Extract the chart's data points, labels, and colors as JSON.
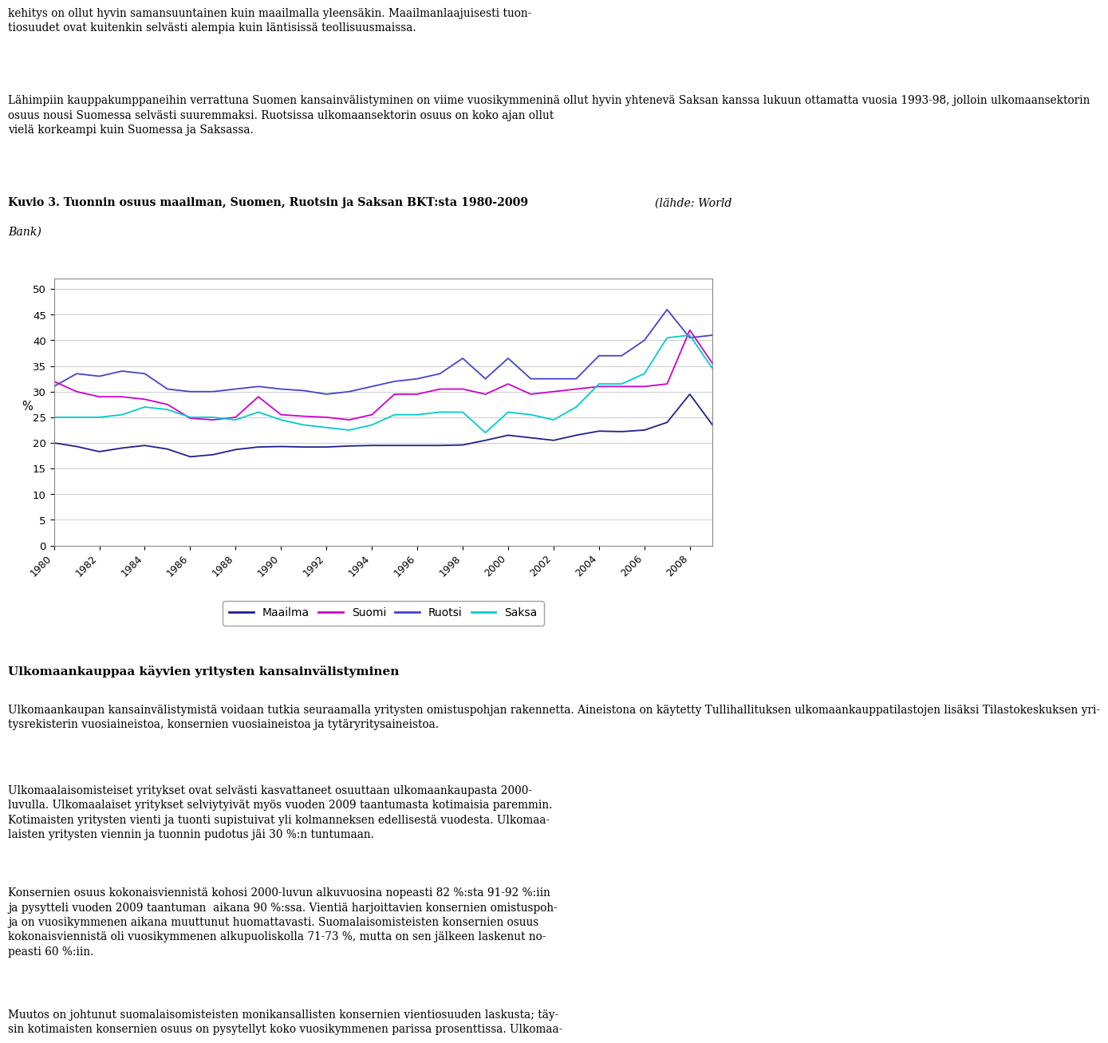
{
  "years": [
    1980,
    1981,
    1982,
    1983,
    1984,
    1985,
    1986,
    1987,
    1988,
    1989,
    1990,
    1991,
    1992,
    1993,
    1994,
    1995,
    1996,
    1997,
    1998,
    1999,
    2000,
    2001,
    2002,
    2003,
    2004,
    2005,
    2006,
    2007,
    2008,
    2009
  ],
  "maailma": [
    20.0,
    19.3,
    18.3,
    19.0,
    19.5,
    18.8,
    17.3,
    17.7,
    18.7,
    19.2,
    19.3,
    19.2,
    19.2,
    19.4,
    19.5,
    19.5,
    19.5,
    19.5,
    19.6,
    20.5,
    21.5,
    21.0,
    20.5,
    21.5,
    22.3,
    22.2,
    22.5,
    24.0,
    29.5,
    23.5
  ],
  "suomi": [
    32.0,
    30.0,
    29.0,
    29.0,
    28.5,
    27.5,
    24.8,
    24.5,
    25.0,
    29.0,
    25.5,
    25.2,
    25.0,
    24.5,
    25.5,
    29.5,
    29.5,
    30.5,
    30.5,
    29.5,
    31.5,
    29.5,
    30.0,
    30.5,
    31.0,
    31.0,
    31.0,
    31.5,
    42.0,
    35.5
  ],
  "ruotsi": [
    31.0,
    33.5,
    33.0,
    34.0,
    33.5,
    30.5,
    30.0,
    30.0,
    30.5,
    31.0,
    30.5,
    30.2,
    29.5,
    30.0,
    31.0,
    32.0,
    32.5,
    33.5,
    36.5,
    32.5,
    36.5,
    32.5,
    32.5,
    32.5,
    37.0,
    37.0,
    40.0,
    46.0,
    40.5,
    41.0
  ],
  "saksa": [
    25.0,
    25.0,
    25.0,
    25.5,
    27.0,
    26.5,
    25.0,
    25.0,
    24.5,
    26.0,
    24.5,
    23.5,
    23.0,
    22.5,
    23.5,
    25.5,
    25.5,
    26.0,
    26.0,
    22.0,
    26.0,
    25.5,
    24.5,
    27.0,
    31.5,
    31.5,
    33.5,
    40.5,
    41.0,
    34.5
  ],
  "maailma_color": "#1F1F8F",
  "suomi_color": "#CC00CC",
  "ruotsi_color": "#4444CC",
  "saksa_color": "#00CCCC",
  "ylabel": "%",
  "yticks": [
    0,
    5,
    10,
    15,
    20,
    25,
    30,
    35,
    40,
    45,
    50
  ],
  "ylim": [
    0,
    52
  ],
  "legend_labels": [
    "Maailma",
    "Suomi",
    "Ruotsi",
    "Saksa"
  ],
  "background_color": "#ffffff",
  "plot_bg": "#ffffff",
  "grid_color": "#cccccc",
  "text_above1": "kehitys on ollut hyvin samansuuntainen kuin maailmalla yleensäkin. Maailmanlaajuisesti tuon-\ntiosuudet ovat kuitenkin selvästi alempia kuin läntisissä teollisuusmaissa.",
  "text_above2_line1": "Lähimpiin kauppakumppaneihin verrattuna Suomen kansainvälistyminen on viime vuosikymmeninä ollut hyvin yhtenevä Saksan kanssa lukuun ottamatta vuosia 1993-98, jolloin ulkomaansektorin",
  "text_above2_line2": "osuus nousi Suomessa selvästi suuremmaksi. Ruotsissa ulkomaansektorin osuus on koko ajan ollut",
  "text_above2_line3": "vielä korkeampi kuin Suomessa ja Saksassa.",
  "text_title_bold": "Kuvio 3. Tuonnin osuus maailman, Suomen, Ruotsin ja Saksan BKT:sta 1980-2009 ",
  "text_title_italic": "(lähde: World",
  "text_title_italic2": "Bank)",
  "text_heading": "Ulkomaankauppaa käyvien yritysten kansainvälistyminen",
  "text_p1": "Ulkomaankaupan kansainvälistymistä voidaan tutkia seuraamalla yritysten omistuspohjan rakennetta. Aineistona on käytetty Tullihallituksen ulkomaankauppatilastojen lisäksi Tilastokeskuksen yri-\ntysrekisterin vuosiaineistoa, konsernien vuosiaineistoa ja tytäryritysaineistoa.",
  "text_p2": "Ulkomaalaisomisteiset yritykset ovat selvästi kasvattaneet osuuttaan ulkomaankaupasta 2000-\nluvulla. Ulkomaalaiset yritykset selviytyivät myös vuoden 2009 taantumasta kotimaisia paremmin.\nKotimaisten yritysten vienti ja tuonti supistuivat yli kolmanneksen edellisestä vuodesta. Ulkomaa-\nlaisten yritysten viennin ja tuonnin pudotus jäi 30 %:n tuntumaan.",
  "text_p3": "Konsernien osuus kokonaisviennistä kohosi 2000-luvun alkuvuosina nopeasti 82 %:sta 91-92 %:iin\nja pysytteli vuoden 2009 taantuman  aikana 90 %:ssa. Vientiä harjoittavien konsernien omistuspoh-\nja on vuosikymmenen aikana muuttunut huomattavasti. Suomalaisomisteisten konsernien osuus\nkokonaisviennistä oli vuosikymmenen alkupuoliskolla 71-73 %, mutta on sen jälkeen laskenut no-\npeasti 60 %:iin.",
  "text_p4": "Muutos on johtunut suomalaisomisteisten monikansallisten konsernien vientiosuuden laskusta; täy-\nsin kotimaisten konsernien osuus on pysytellyt koko vuosikymmenen parissa prosenttissa. Ulkomaa-"
}
